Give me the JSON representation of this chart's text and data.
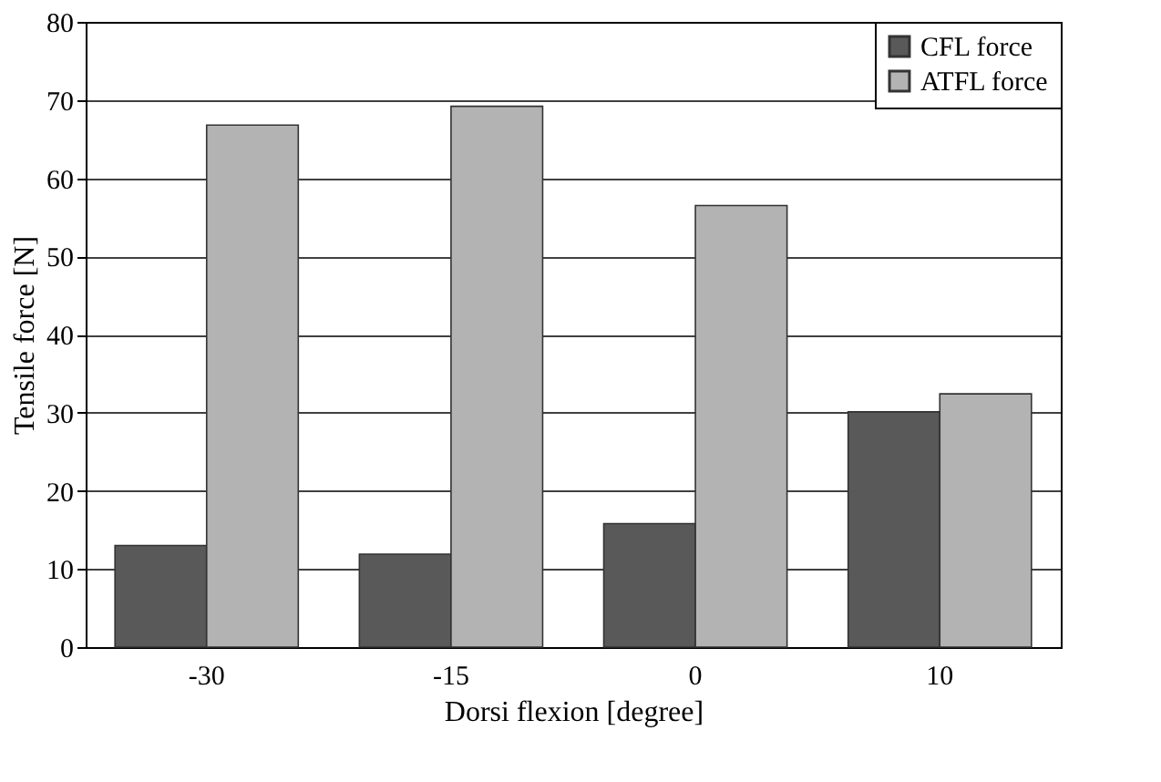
{
  "chart_data": {
    "type": "bar",
    "xlabel": "Dorsi flexion [degree]",
    "ylabel": "Tensile force [N]",
    "categories": [
      "-30",
      "-15",
      "0",
      "10"
    ],
    "series": [
      {
        "name": "CFL force",
        "color": "#595959",
        "values": [
          13.0,
          11.9,
          15.8,
          30.1
        ]
      },
      {
        "name": "ATFL force",
        "color": "#b3b3b3",
        "values": [
          66.8,
          69.2,
          56.5,
          32.4
        ]
      }
    ],
    "ylim": [
      0,
      80
    ],
    "yticks": [
      0,
      10,
      20,
      30,
      40,
      50,
      60,
      70,
      80
    ],
    "grid": "y",
    "legend": "top right"
  }
}
